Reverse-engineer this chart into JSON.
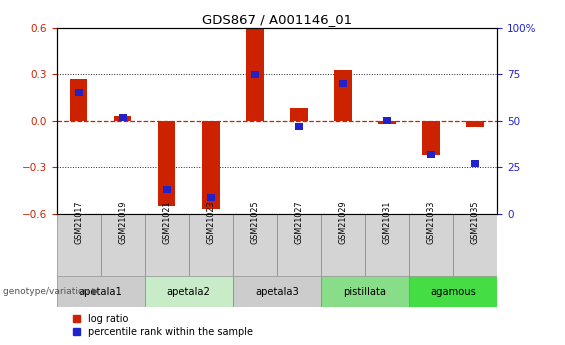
{
  "title": "GDS867 / A001146_01",
  "samples": [
    "GSM21017",
    "GSM21019",
    "GSM21021",
    "GSM21023",
    "GSM21025",
    "GSM21027",
    "GSM21029",
    "GSM21031",
    "GSM21033",
    "GSM21035"
  ],
  "log_ratios": [
    0.27,
    0.03,
    -0.55,
    -0.57,
    0.59,
    0.08,
    0.33,
    -0.02,
    -0.22,
    -0.04
  ],
  "percentile_ranks": [
    65,
    52,
    13,
    9,
    75,
    47,
    70,
    50,
    32,
    27
  ],
  "ylim": [
    -0.6,
    0.6
  ],
  "yticks_left": [
    -0.6,
    -0.3,
    0.0,
    0.3,
    0.6
  ],
  "right_yticks": [
    0,
    25,
    50,
    75,
    100
  ],
  "right_ylabels": [
    "0",
    "25",
    "50",
    "75",
    "100%"
  ],
  "bar_color": "#cc2200",
  "pct_color": "#2222cc",
  "zero_line_color": "#cc2200",
  "dot_grid_color": "#222222",
  "title_color": "#000000",
  "left_tick_color": "#cc2200",
  "right_tick_color": "#2222cc",
  "groups": [
    {
      "name": "apetala1",
      "indices": [
        0,
        1
      ],
      "color": "#cccccc"
    },
    {
      "name": "apetala2",
      "indices": [
        2,
        3
      ],
      "color": "#c8ecc8"
    },
    {
      "name": "apetala3",
      "indices": [
        4,
        5
      ],
      "color": "#cccccc"
    },
    {
      "name": "pistillata",
      "indices": [
        6,
        7
      ],
      "color": "#88dd88"
    },
    {
      "name": "agamous",
      "indices": [
        8,
        9
      ],
      "color": "#44dd44"
    }
  ],
  "bar_width": 0.4,
  "legend_red": "log ratio",
  "legend_blue": "percentile rank within the sample",
  "genotype_label": "genotype/variation"
}
